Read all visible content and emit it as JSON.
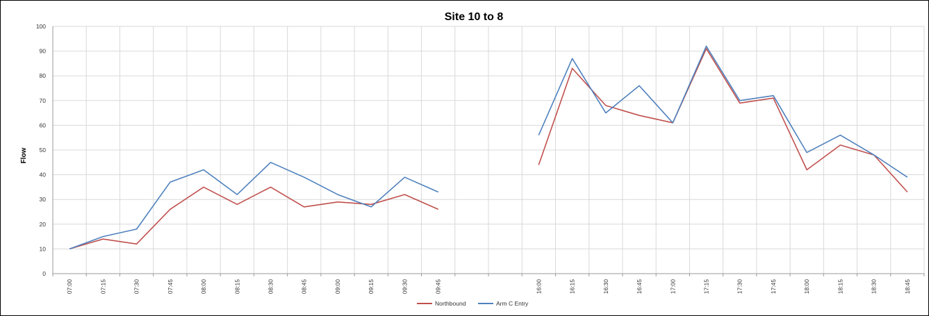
{
  "chart_data": {
    "type": "line",
    "title": "Site 10 to 8",
    "xlabel": "",
    "ylabel": "Flow",
    "ylim": [
      0,
      100
    ],
    "yticks": [
      0,
      10,
      20,
      30,
      40,
      50,
      60,
      70,
      80,
      90,
      100
    ],
    "grid": true,
    "legend": "bottom",
    "categories": [
      "07:00",
      "07:15",
      "07:30",
      "07:45",
      "08:00",
      "08:15",
      "08:30",
      "08:45",
      "09:00",
      "09:15",
      "09:30",
      "09:45",
      "",
      "",
      "16:00",
      "16:15",
      "16:30",
      "16:45",
      "17:00",
      "17:15",
      "17:30",
      "17:45",
      "18:00",
      "18:15",
      "18:30",
      "18:45"
    ],
    "series": [
      {
        "name": "Northbound",
        "color": "#c0504d",
        "values": [
          10,
          14,
          12,
          26,
          35,
          28,
          35,
          27,
          29,
          28,
          32,
          26,
          null,
          null,
          44,
          83,
          68,
          64,
          61,
          91,
          69,
          71,
          42,
          52,
          48,
          33
        ]
      },
      {
        "name": "Arm C Entry",
        "color": "#4f81bd",
        "values": [
          10,
          15,
          18,
          37,
          42,
          32,
          45,
          39,
          32,
          27,
          39,
          33,
          null,
          null,
          56,
          87,
          65,
          76,
          61,
          92,
          70,
          72,
          49,
          56,
          48,
          39
        ]
      }
    ]
  }
}
